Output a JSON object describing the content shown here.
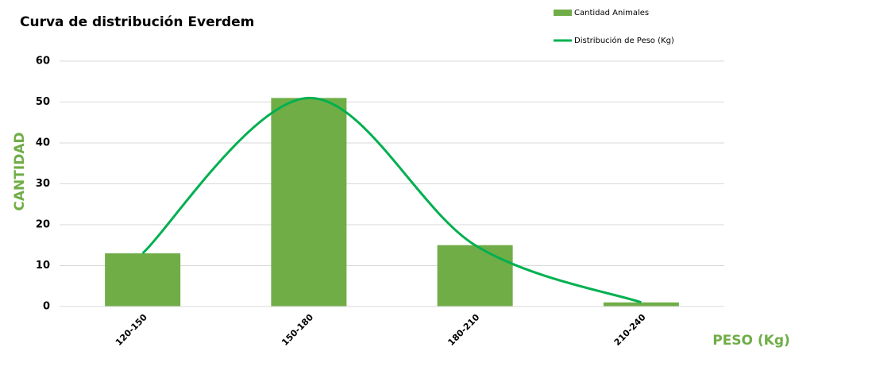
{
  "chart_data": {
    "type": "bar",
    "title": "Curva de distribución Everdem",
    "y_label": "CANTIDAD",
    "x_label": "PESO (Kg)",
    "categories": [
      "120-150",
      "150-180",
      "180-210",
      "210-240"
    ],
    "series": [
      {
        "name": "Cantidad Animales",
        "type": "bar",
        "color": "#70ad47",
        "values": [
          13,
          51,
          15,
          1
        ]
      },
      {
        "name": "Distribución de Peso (Kg)",
        "type": "line",
        "color": "#00b050",
        "values": [
          13,
          51,
          15,
          1
        ]
      }
    ],
    "ylim": [
      0,
      60
    ],
    "yticks": [
      0,
      10,
      20,
      30,
      40,
      50,
      60
    ],
    "grid": true,
    "axis_label_color": "#70ad47"
  }
}
